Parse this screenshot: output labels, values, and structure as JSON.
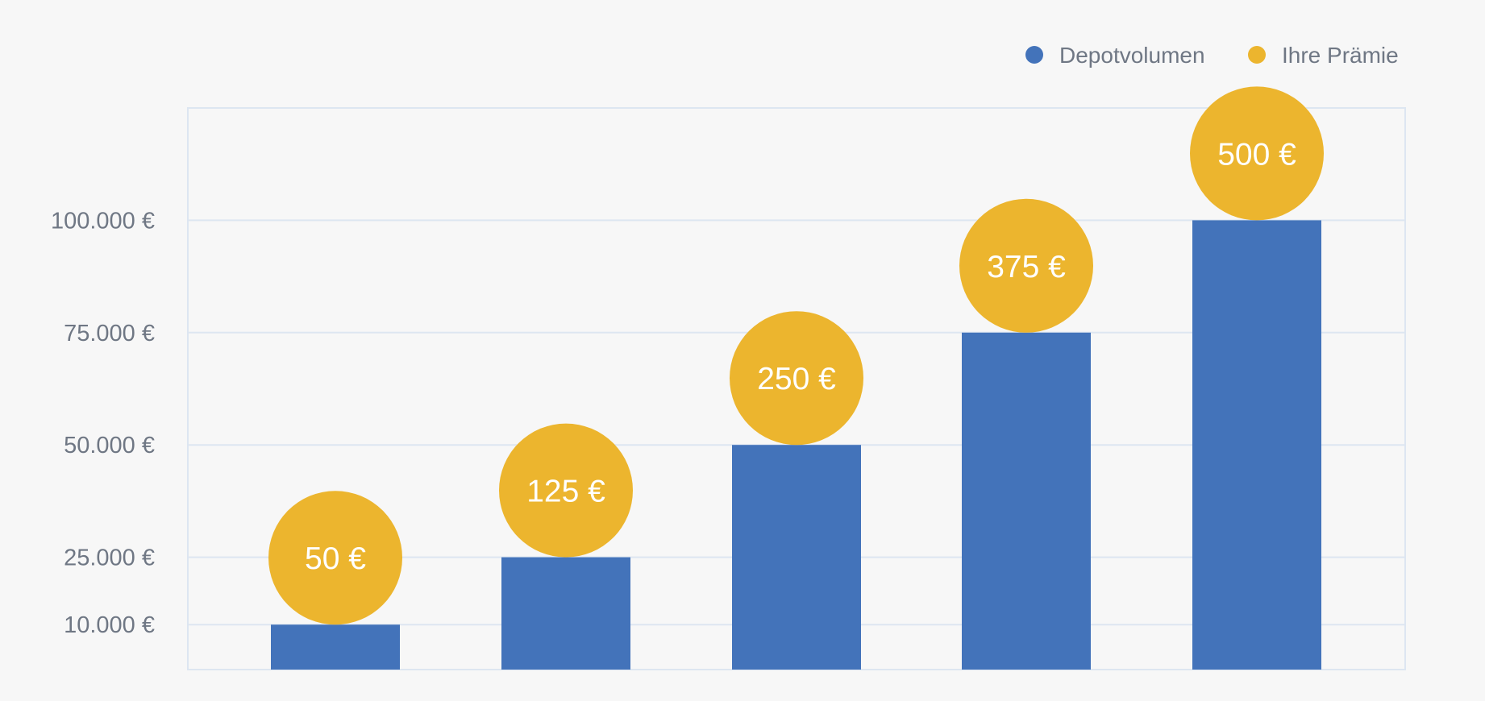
{
  "chart_data": {
    "type": "bar",
    "categories": [
      "",
      "",
      "",
      "",
      ""
    ],
    "y_ticks": [
      {
        "value": 10000,
        "label": "10.000 €"
      },
      {
        "value": 25000,
        "label": "25.000 €"
      },
      {
        "value": 50000,
        "label": "50.000 €"
      },
      {
        "value": 75000,
        "label": "75.000 €"
      },
      {
        "value": 100000,
        "label": "100.000 €"
      }
    ],
    "ylim": [
      0,
      125000
    ],
    "series": [
      {
        "name": "Depotvolumen",
        "color": "#4373ba",
        "values": [
          10000,
          25000,
          50000,
          75000,
          100000
        ]
      },
      {
        "name": "Ihre Prämie",
        "color": "#ecb52e",
        "values": [
          50,
          125,
          250,
          375,
          500
        ],
        "labels": [
          "50 €",
          "125 €",
          "250 €",
          "375 €",
          "500 €"
        ]
      }
    ],
    "legend_position": "top-right",
    "grid": true,
    "grid_color": "#dde6f1",
    "title": "",
    "xlabel": "",
    "ylabel": ""
  }
}
